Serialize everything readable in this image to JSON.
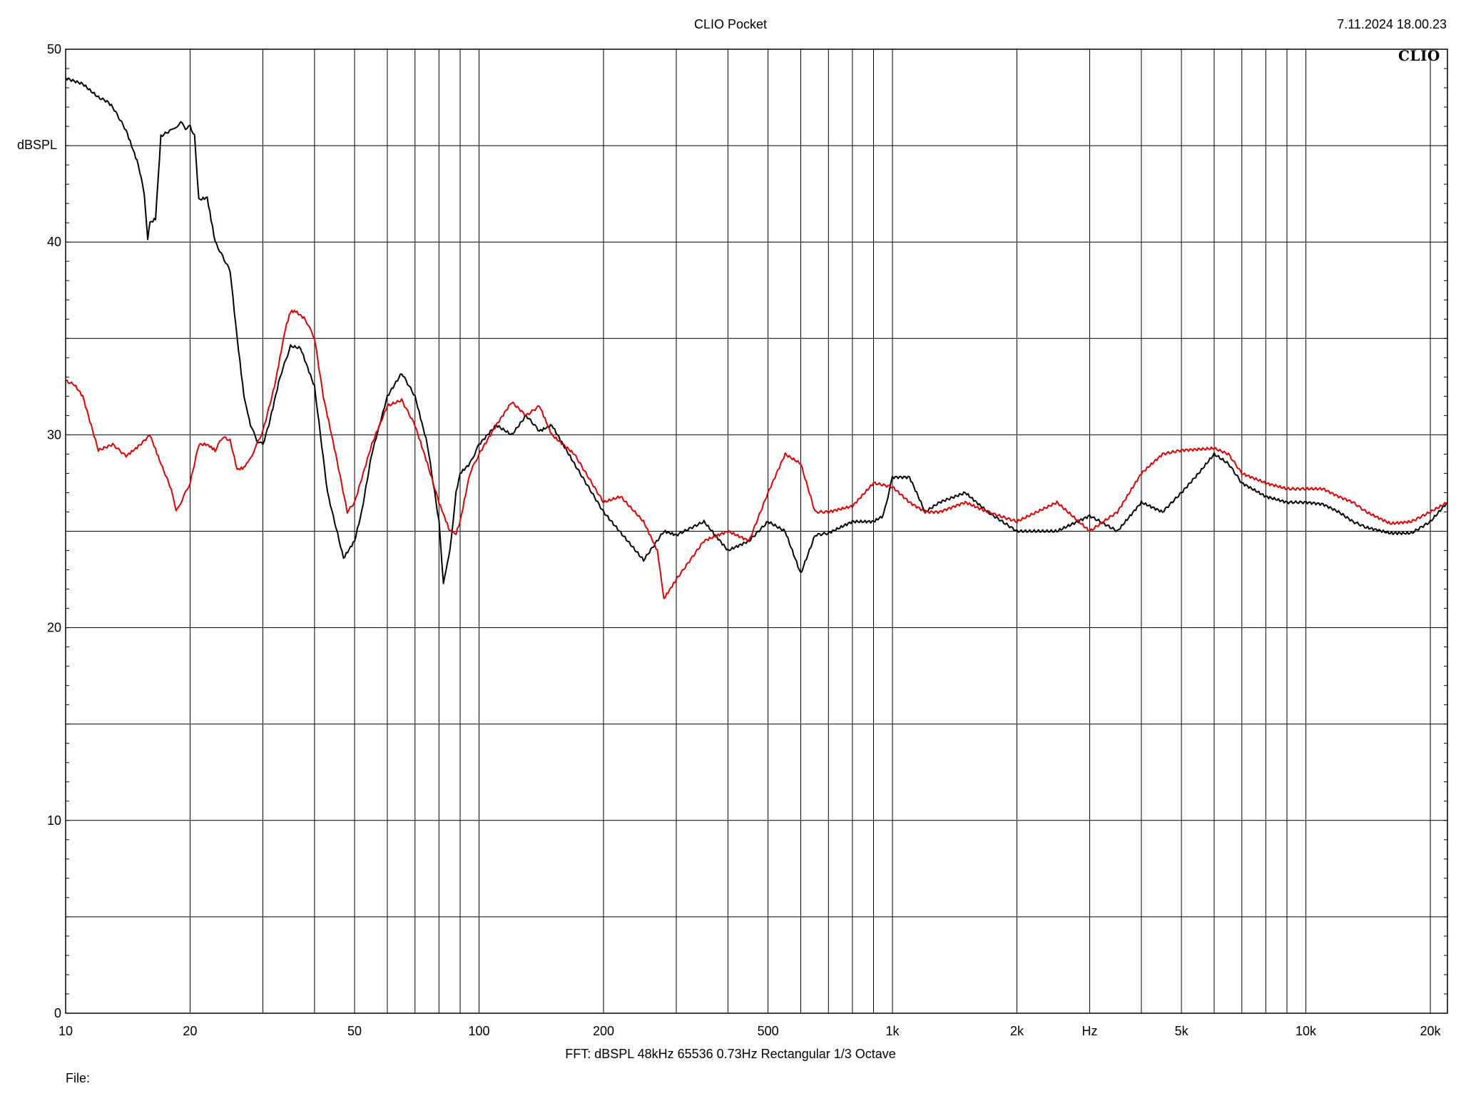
{
  "header": {
    "title": "CLIO Pocket",
    "timestamp": "7.11.2024 18.00.23",
    "logo": "CLIO"
  },
  "footer": {
    "analysis": "FFT:  dBSPL  48kHz   65536  0.73Hz  Rectangular  1/3 Octave",
    "file_label": "File:"
  },
  "chart_data": {
    "type": "line",
    "title": "CLIO Pocket",
    "xlabel": "Hz",
    "ylabel": "dBSPL",
    "xscale": "log",
    "xlim": [
      10,
      22000
    ],
    "ylim": [
      0,
      50
    ],
    "grid": true,
    "x_tick_labels": [
      {
        "value": 10,
        "label": "10"
      },
      {
        "value": 20,
        "label": "20"
      },
      {
        "value": 50,
        "label": "50"
      },
      {
        "value": 100,
        "label": "100"
      },
      {
        "value": 200,
        "label": "200"
      },
      {
        "value": 500,
        "label": "500"
      },
      {
        "value": 1000,
        "label": "1k"
      },
      {
        "value": 2000,
        "label": "2k"
      },
      {
        "value": 5000,
        "label": "5k"
      },
      {
        "value": 10000,
        "label": "10k"
      },
      {
        "value": 20000,
        "label": "20k"
      }
    ],
    "x_unit_label": "Hz",
    "y_ticks": [
      0,
      10,
      20,
      30,
      40,
      50
    ],
    "y_minor_grid": [
      5,
      15,
      25,
      35,
      45
    ],
    "series": [
      {
        "color": "#000000",
        "x": [
          10,
          11,
          12,
          12.6,
          13,
          14,
          15,
          15.5,
          15.8,
          16,
          16.5,
          17,
          18,
          18.5,
          19,
          19.5,
          20,
          20.5,
          21,
          22,
          23,
          25,
          26,
          27,
          28,
          29,
          30,
          31,
          33,
          35,
          37,
          40,
          43,
          47,
          50,
          52,
          55,
          60,
          65,
          70,
          75,
          80,
          82,
          85,
          88,
          90,
          95,
          100,
          110,
          120,
          130,
          140,
          150,
          170,
          200,
          250,
          280,
          300,
          350,
          400,
          450,
          500,
          550,
          600,
          650,
          700,
          800,
          900,
          950,
          1000,
          1100,
          1200,
          1300,
          1500,
          1700,
          2000,
          2500,
          3000,
          3500,
          4000,
          4500,
          5000,
          5500,
          6000,
          6500,
          7000,
          8000,
          9000,
          10000,
          11000,
          12000,
          13000,
          14000,
          16000,
          18000,
          20000,
          22000
        ],
        "y": [
          48.5,
          48.2,
          47.5,
          47.3,
          47.0,
          45.8,
          44.0,
          42.5,
          40.2,
          41.0,
          41.2,
          45.5,
          45.8,
          46.0,
          46.2,
          45.9,
          46.0,
          45.5,
          42.2,
          42.3,
          40.0,
          38.5,
          35.0,
          32.0,
          30.5,
          29.7,
          29.5,
          30.5,
          33.0,
          34.6,
          34.5,
          32.5,
          27.0,
          23.6,
          24.5,
          26.0,
          29.0,
          32.0,
          33.2,
          32.0,
          29.5,
          25.5,
          22.3,
          24.0,
          27.0,
          28.0,
          28.5,
          29.5,
          30.5,
          30.0,
          31.0,
          30.2,
          30.5,
          28.5,
          26.0,
          23.5,
          25.0,
          24.8,
          25.5,
          24.0,
          24.5,
          25.5,
          25.0,
          22.8,
          24.8,
          24.9,
          25.5,
          25.5,
          25.8,
          27.8,
          27.8,
          26.0,
          26.5,
          27.0,
          26.0,
          25.0,
          25.0,
          25.8,
          25.0,
          26.5,
          26.0,
          27.0,
          28.0,
          29.0,
          28.5,
          27.5,
          26.8,
          26.5,
          26.5,
          26.4,
          26.0,
          25.5,
          25.2,
          24.9,
          24.9,
          25.5,
          26.5
        ]
      },
      {
        "color": "#e00000",
        "x": [
          10,
          10.5,
          11,
          12,
          13,
          14,
          15,
          16,
          17,
          18,
          18.5,
          19,
          20,
          21,
          22,
          23,
          24,
          25,
          26,
          27,
          28,
          29,
          30,
          32,
          34,
          35,
          36,
          38,
          40,
          42,
          45,
          48,
          50,
          55,
          60,
          65,
          70,
          75,
          80,
          85,
          88,
          90,
          95,
          100,
          110,
          120,
          130,
          140,
          150,
          170,
          200,
          220,
          250,
          270,
          280,
          300,
          350,
          400,
          450,
          500,
          550,
          600,
          650,
          700,
          800,
          900,
          1000,
          1100,
          1200,
          1300,
          1500,
          1700,
          2000,
          2500,
          3000,
          3500,
          4000,
          4500,
          5000,
          6000,
          6500,
          7000,
          8000,
          9000,
          10000,
          11000,
          12000,
          13000,
          14000,
          16000,
          18000,
          20000,
          22000
        ],
        "y": [
          32.8,
          32.6,
          32.0,
          29.2,
          29.5,
          28.9,
          29.4,
          30.0,
          28.5,
          27.2,
          26.0,
          26.5,
          27.5,
          29.5,
          29.5,
          29.2,
          29.9,
          29.7,
          28.2,
          28.3,
          28.8,
          29.5,
          30.2,
          32.5,
          35.5,
          36.4,
          36.4,
          36.0,
          35.0,
          32.0,
          29.0,
          26.0,
          26.5,
          29.5,
          31.5,
          31.8,
          30.5,
          28.5,
          26.5,
          25.0,
          24.9,
          25.5,
          28.0,
          29.0,
          30.5,
          31.7,
          31.0,
          31.5,
          30.0,
          29.0,
          26.5,
          26.8,
          25.5,
          24.0,
          21.5,
          22.5,
          24.5,
          25.0,
          24.5,
          27.0,
          29.0,
          28.5,
          26.0,
          26.0,
          26.3,
          27.5,
          27.3,
          26.5,
          26.0,
          26.0,
          26.5,
          26.0,
          25.5,
          26.5,
          25.0,
          26.0,
          28.0,
          29.0,
          29.2,
          29.3,
          29.0,
          28.0,
          27.5,
          27.2,
          27.2,
          27.2,
          26.8,
          26.5,
          26.0,
          25.4,
          25.5,
          26.0,
          26.5
        ]
      }
    ]
  }
}
